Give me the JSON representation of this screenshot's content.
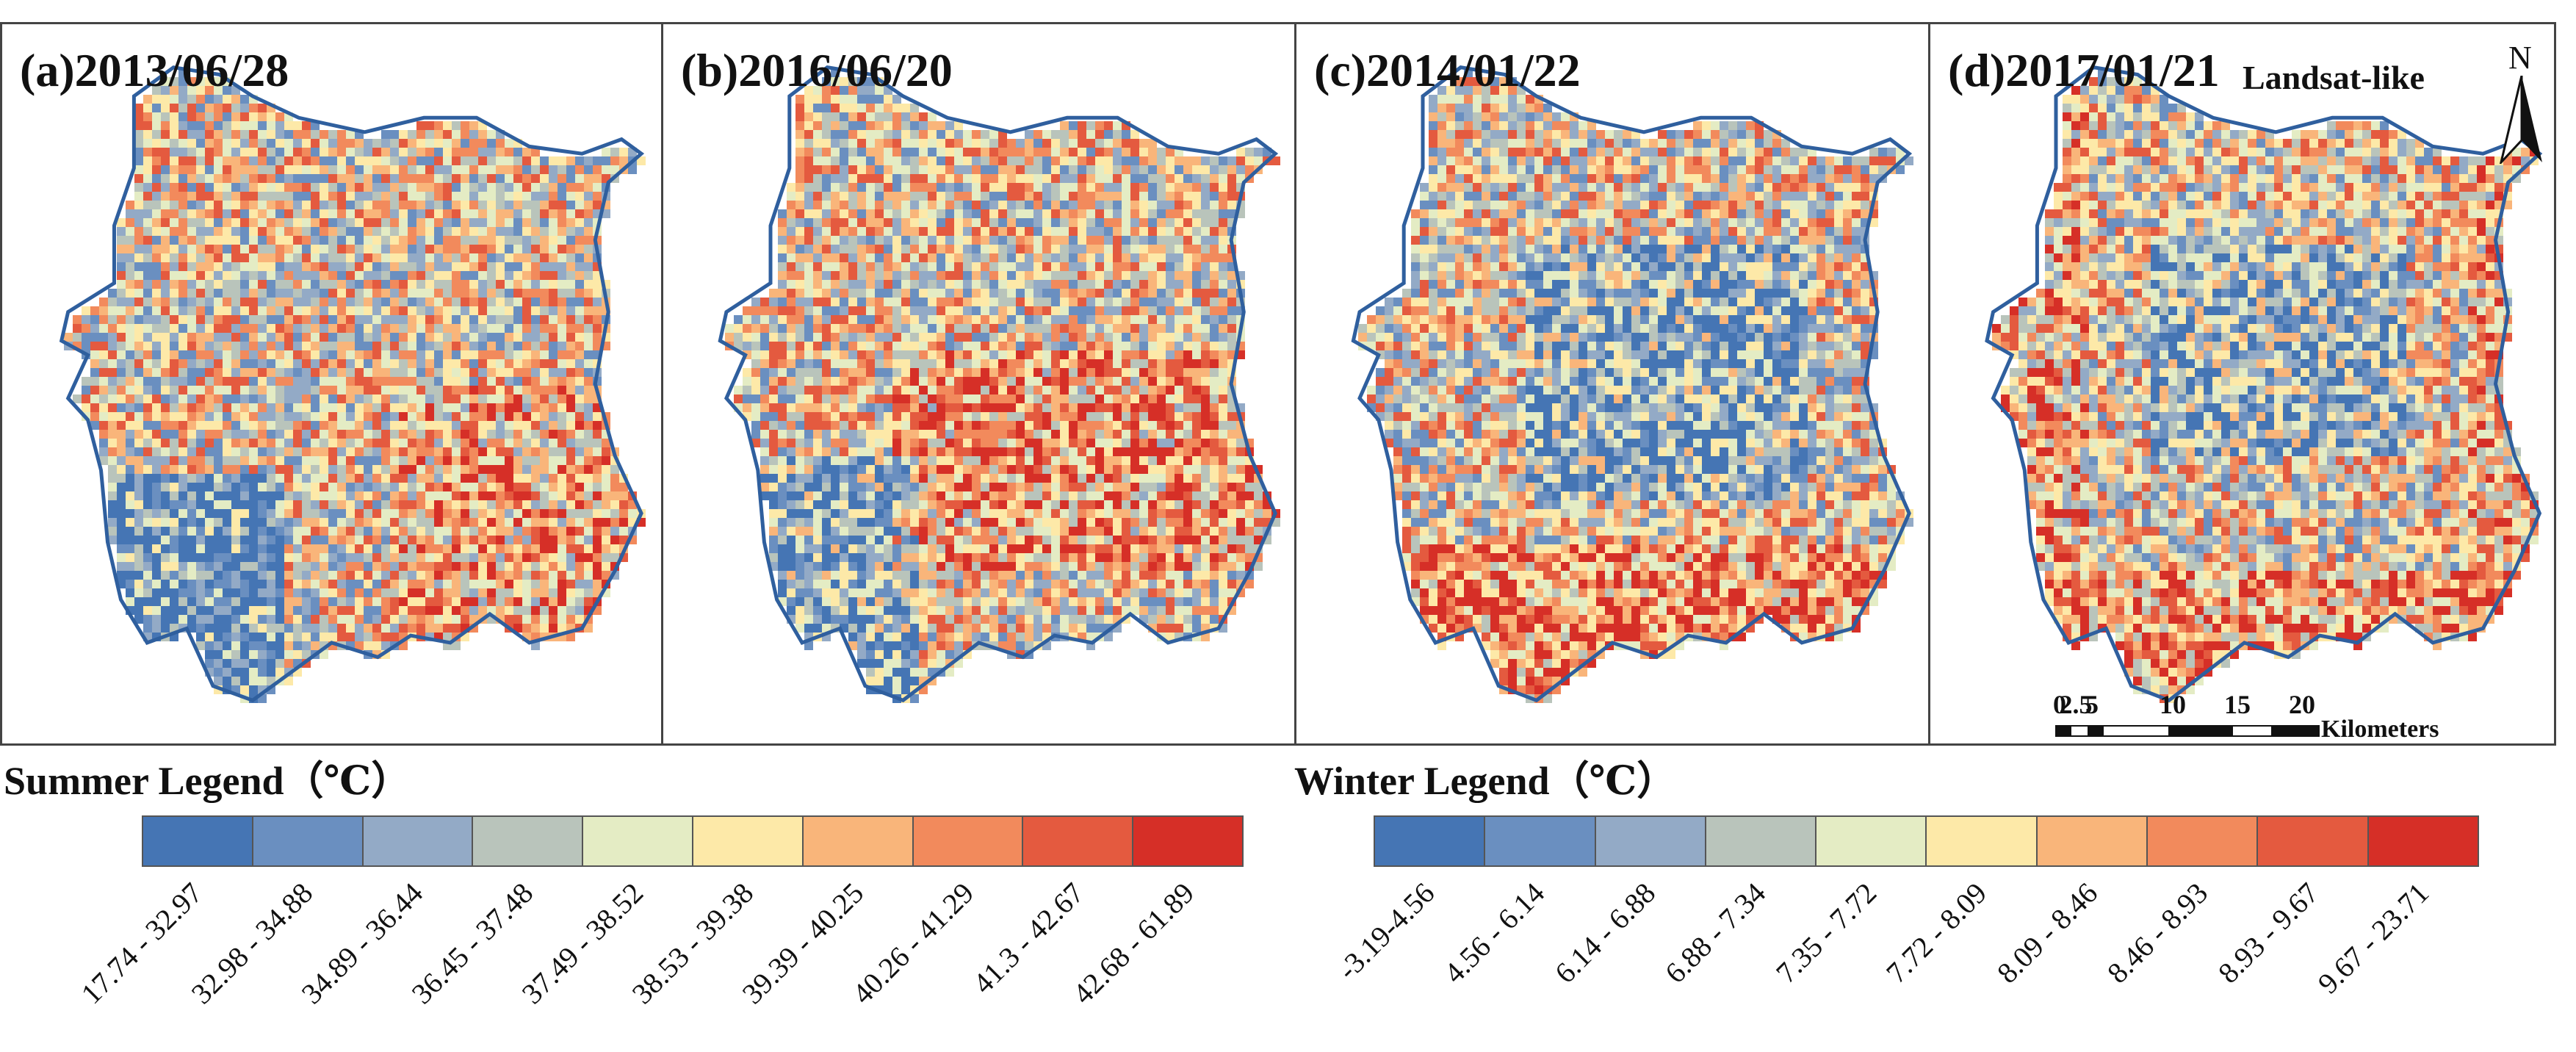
{
  "panels": [
    {
      "title": "(a)2013/06/28",
      "season": "summer"
    },
    {
      "title": "(b)2016/06/20",
      "season": "summer"
    },
    {
      "title": "(c)2014/01/22",
      "season": "winter"
    },
    {
      "title": "(d)2017/01/21",
      "season": "winter"
    }
  ],
  "source_label": "Landsat-like",
  "north_arrow": {
    "letter": "N"
  },
  "scale_bar": {
    "ticks": [
      "0",
      "2.5",
      "5",
      "10",
      "15",
      "20"
    ],
    "unit": "Kilometers"
  },
  "summer_legend": {
    "title": "Summer Legend（℃）",
    "classes": [
      "17.74 - 32.97",
      "32.98 - 34.88",
      "34.89 - 36.44",
      "36.45 - 37.48",
      "37.49 - 38.52",
      "38.53 - 39.38",
      "39.39 - 40.25",
      "40.26 - 41.29",
      "41.3 - 42.67",
      "42.68 - 61.89"
    ]
  },
  "winter_legend": {
    "title": "Winter Legend（℃）",
    "classes": [
      "-3.19-4.56",
      "4.56 - 6.14",
      "6.14 - 6.88",
      "6.88 - 7.34",
      "7.35 - 7.72",
      "7.72 - 8.09",
      "8.09 - 8.46",
      "8.46 - 8.93",
      "8.93 - 9.67",
      "9.67 - 23.71"
    ]
  },
  "palette": [
    "#4575b4",
    "#6a8fc0",
    "#93aac6",
    "#b9c4bb",
    "#e4ecc4",
    "#fde9a8",
    "#f9b57a",
    "#f28a5c",
    "#e45a3f",
    "#d62f27"
  ]
}
